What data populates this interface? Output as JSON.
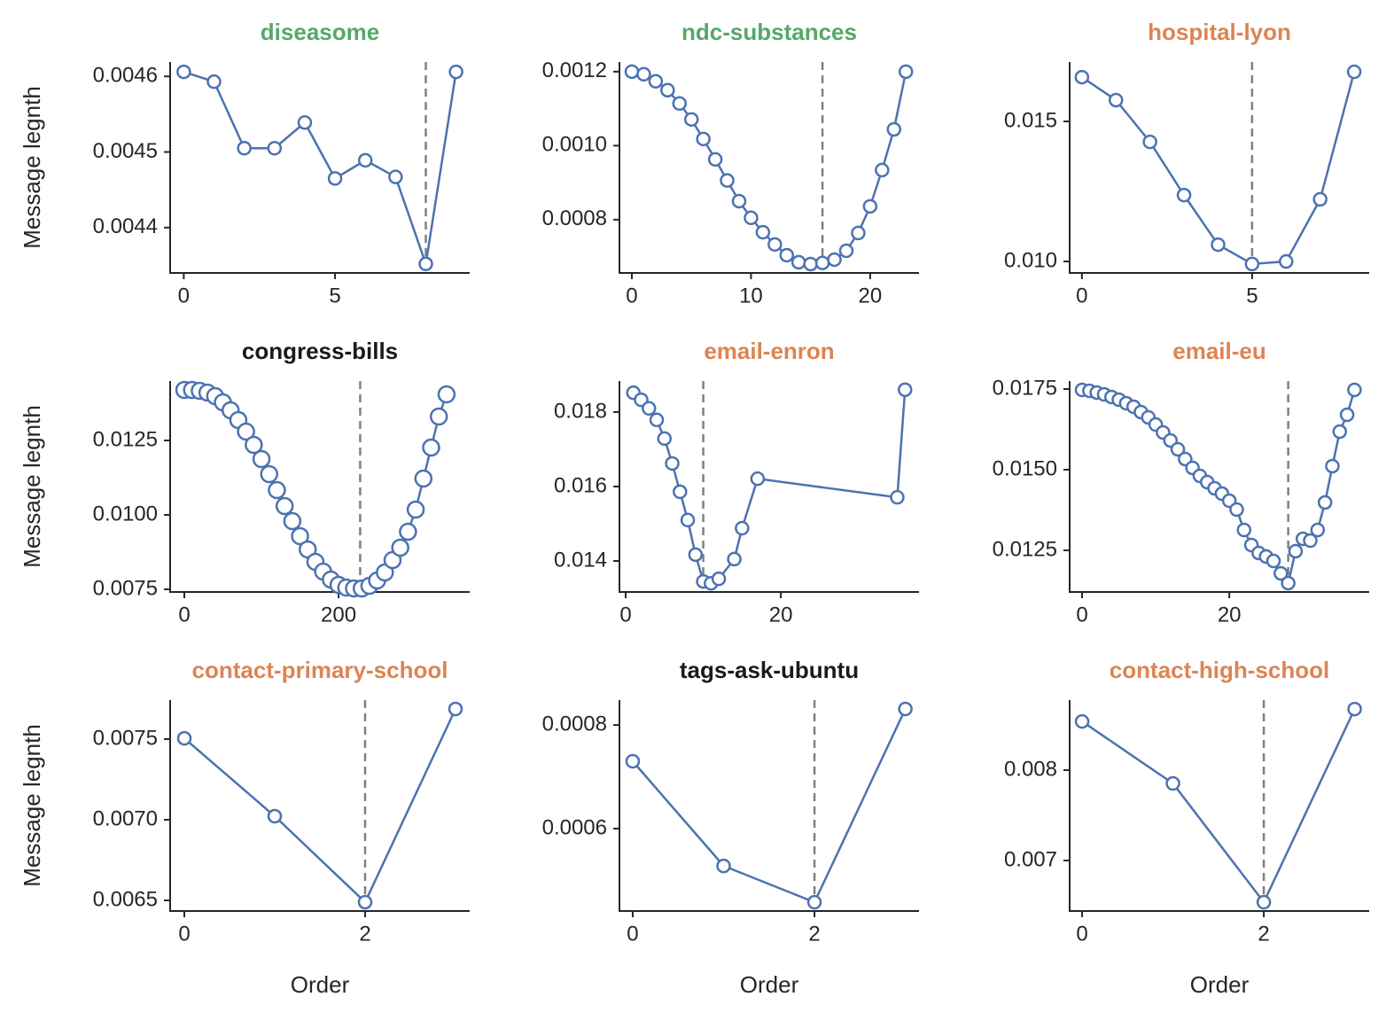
{
  "chart_data": [
    {
      "type": "line",
      "title": "diseasome",
      "title_color": "#55a868",
      "ylabel": "Message legnth",
      "x": [
        0,
        1,
        2,
        3,
        4,
        5,
        6,
        7,
        8,
        9
      ],
      "series": [
        {
          "color": "#4c72b0",
          "values": [
            0.004606,
            0.004593,
            0.004505,
            0.004505,
            0.004539,
            0.004465,
            0.004489,
            0.004467,
            0.004352,
            0.004606
          ]
        }
      ],
      "vline": 8,
      "xlim": [
        -0.45,
        9.45
      ],
      "ylim": [
        0.00434,
        0.004619
      ],
      "xticks": [
        0,
        5
      ],
      "yticks": [
        0.0044,
        0.0045,
        0.0046
      ]
    },
    {
      "type": "line",
      "title": "ndc-substances",
      "title_color": "#55a868",
      "x": [
        0,
        1,
        2,
        3,
        4,
        5,
        6,
        7,
        8,
        9,
        10,
        11,
        12,
        13,
        14,
        15,
        16,
        17,
        18,
        19,
        20,
        21,
        22,
        23
      ],
      "series": [
        {
          "color": "#4c72b0",
          "values": [
            0.0012,
            0.001193,
            0.001174,
            0.00115,
            0.001114,
            0.001071,
            0.001018,
            0.000963,
            0.000906,
            0.00085,
            0.000805,
            0.000766,
            0.000733,
            0.000704,
            0.000685,
            0.00068,
            0.000683,
            0.000692,
            0.000716,
            0.000764,
            0.000836,
            0.000934,
            0.001044,
            0.0012
          ]
        }
      ],
      "vline": 16,
      "xlim": [
        -1.04,
        24.1
      ],
      "ylim": [
        0.000656,
        0.001226
      ],
      "xticks": [
        0,
        10,
        20
      ],
      "yticks": [
        0.0008,
        {
          "value": 0.001,
          "label": "0.0010"
        },
        0.0012
      ]
    },
    {
      "type": "line",
      "title": "hospital-lyon",
      "title_color": "#dd8452",
      "x": [
        0,
        1,
        2,
        3,
        4,
        5,
        6,
        7,
        8
      ],
      "series": [
        {
          "color": "#4c72b0",
          "values": [
            0.01658,
            0.01576,
            0.01427,
            0.01237,
            0.0106,
            0.00991,
            0.01,
            0.01222,
            0.01677
          ]
        }
      ],
      "vline": 5,
      "xlim": [
        -0.36,
        8.44
      ],
      "ylim": [
        0.00959,
        0.01712
      ],
      "xticks": [
        0,
        5
      ],
      "yticks": [
        {
          "value": 0.01,
          "label": "0.010"
        },
        0.015
      ]
    },
    {
      "type": "line",
      "title": "congress-bills",
      "title_color": "#1a1a1a",
      "ylabel": "Message legnth",
      "marker_size": 9,
      "x": [
        0,
        10,
        20,
        30,
        40,
        50,
        60,
        70,
        80,
        90,
        100,
        110,
        120,
        130,
        140,
        150,
        160,
        170,
        180,
        190,
        200,
        210,
        220,
        230,
        240,
        250,
        260,
        270,
        280,
        290,
        300,
        310,
        320,
        330,
        340
      ],
      "series": [
        {
          "color": "#4c72b0",
          "values": [
            0.014196,
            0.014196,
            0.014167,
            0.014107,
            0.013988,
            0.01378,
            0.013512,
            0.013184,
            0.012798,
            0.012351,
            0.011875,
            0.011369,
            0.010833,
            0.010298,
            0.009792,
            0.009286,
            0.00884,
            0.008423,
            0.008096,
            0.007828,
            0.007649,
            0.00756,
            0.00753,
            0.00753,
            0.00762,
            0.007798,
            0.008066,
            0.008482,
            0.0089,
            0.009435,
            0.010179,
            0.01122,
            0.012262,
            0.013304,
            0.014048
          ]
        }
      ],
      "vline": 228,
      "xlim": [
        -18.4,
        370
      ],
      "ylim": [
        0.007411,
        0.014494
      ],
      "xticks": [
        0,
        200
      ],
      "yticks": [
        0.0075,
        {
          "value": 0.01,
          "label": "0.0100"
        },
        0.0125
      ]
    },
    {
      "type": "line",
      "title": "email-enron",
      "title_color": "#dd8452",
      "x": [
        1,
        2,
        3,
        4,
        5,
        6,
        7,
        8,
        9,
        10,
        11,
        12,
        14,
        15,
        17,
        35,
        36
      ],
      "series": [
        {
          "color": "#4c72b0",
          "values": [
            0.01852,
            0.01833,
            0.0181,
            0.01779,
            0.01729,
            0.01662,
            0.01586,
            0.0151,
            0.01417,
            0.01345,
            0.0134,
            0.01352,
            0.01405,
            0.01488,
            0.01621,
            0.01571,
            0.0186
          ]
        }
      ],
      "vline": 10,
      "xlim": [
        -0.8,
        37.8
      ],
      "ylim": [
        0.013167,
        0.018833
      ],
      "xticks": [
        0,
        20
      ],
      "yticks": [
        0.014,
        0.016,
        0.018
      ]
    },
    {
      "type": "line",
      "title": "email-eu",
      "title_color": "#dd8452",
      "x": [
        0,
        1,
        2,
        3,
        4,
        5,
        6,
        7,
        8,
        9,
        10,
        11,
        12,
        13,
        14,
        15,
        16,
        17,
        18,
        19,
        20,
        21,
        22,
        23,
        24,
        25,
        26,
        27,
        28,
        29,
        30,
        31,
        32,
        33,
        34,
        35,
        36,
        37
      ],
      "series": [
        {
          "color": "#4c72b0",
          "values": [
            0.017473,
            0.017445,
            0.01739,
            0.017335,
            0.017253,
            0.01717,
            0.01706,
            0.016951,
            0.016786,
            0.016621,
            0.016401,
            0.016154,
            0.015907,
            0.015632,
            0.01533,
            0.015055,
            0.014808,
            0.014615,
            0.014423,
            0.014258,
            0.014038,
            0.013764,
            0.013132,
            0.012665,
            0.012418,
            0.012308,
            0.01217,
            0.011786,
            0.011484,
            0.012473,
            0.012857,
            0.012802,
            0.013132,
            0.013984,
            0.01511,
            0.016181,
            0.016703,
            0.017473
          ]
        }
      ],
      "vline": 28,
      "xlim": [
        -1.69,
        39.0
      ],
      "ylim": [
        0.011209,
        0.017747
      ],
      "xticks": [
        0,
        20
      ],
      "yticks": [
        0.0125,
        {
          "value": 0.015,
          "label": "0.0150"
        },
        0.0175
      ]
    },
    {
      "type": "line",
      "title": "contact-primary-school",
      "title_color": "#dd8452",
      "ylabel": "Message legnth",
      "xlabel": "Order",
      "x": [
        0,
        1,
        2,
        3
      ],
      "series": [
        {
          "color": "#4c72b0",
          "values": [
            0.007505,
            0.007022,
            0.006489,
            0.007687
          ]
        }
      ],
      "vline": 2,
      "xlim": [
        -0.157,
        3.157
      ],
      "ylim": [
        0.006434,
        0.007742
      ],
      "xticks": [
        0,
        2
      ],
      "yticks": [
        0.0065,
        {
          "value": 0.007,
          "label": "0.0070"
        },
        0.0075
      ]
    },
    {
      "type": "line",
      "title": "tags-ask-ubuntu",
      "title_color": "#1a1a1a",
      "xlabel": "Order",
      "x": [
        0,
        1,
        2,
        3
      ],
      "series": [
        {
          "color": "#4c72b0",
          "values": [
            0.00073,
            0.000528,
            0.000458,
            0.000831
          ]
        }
      ],
      "vline": 2,
      "xlim": [
        -0.146,
        3.15
      ],
      "ylim": [
        0.000441,
        0.000848
      ],
      "xticks": [
        0,
        2
      ],
      "yticks": [
        0.0006,
        0.0008
      ]
    },
    {
      "type": "line",
      "title": "contact-high-school",
      "title_color": "#dd8452",
      "xlabel": "Order",
      "x": [
        0,
        1,
        2,
        3
      ],
      "series": [
        {
          "color": "#4c72b0",
          "values": [
            0.008539,
            0.007853,
            0.006539,
            0.008676
          ]
        }
      ],
      "vline": 2,
      "xlim": [
        -0.137,
        3.16
      ],
      "ylim": [
        0.006441,
        0.008775
      ],
      "xticks": [
        0,
        2
      ],
      "yticks": [
        0.007,
        0.008
      ]
    }
  ]
}
